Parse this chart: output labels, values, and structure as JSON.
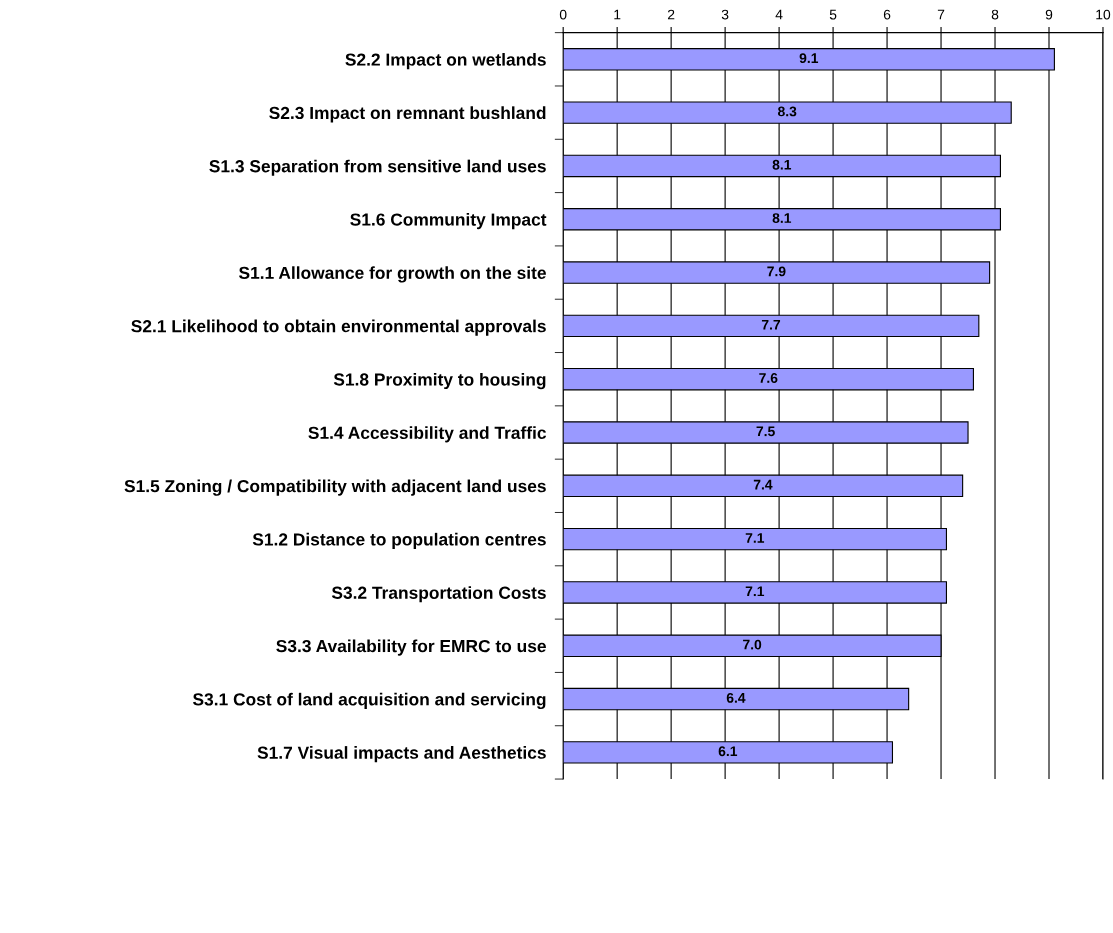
{
  "chart_data": {
    "type": "bar",
    "orientation": "horizontal",
    "categories": [
      "S2.2 Impact on wetlands",
      "S2.3 Impact on remnant bushland",
      "S1.3 Separation from sensitive land uses",
      "S1.6 Community Impact",
      "S1.1 Allowance for growth on the site",
      "S2.1 Likelihood to obtain environmental approvals",
      "S1.8 Proximity to housing",
      "S1.4 Accessibility and Traffic",
      "S1.5 Zoning / Compatibility with adjacent land uses",
      "S1.2 Distance to population centres",
      "S3.2 Transportation Costs",
      "S3.3 Availability for EMRC to use",
      "S3.1 Cost of land acquisition and servicing",
      "S1.7 Visual impacts and Aesthetics"
    ],
    "values": [
      9.1,
      8.3,
      8.1,
      8.1,
      7.9,
      7.7,
      7.6,
      7.5,
      7.4,
      7.1,
      7.1,
      7.0,
      6.4,
      6.1
    ],
    "value_labels": [
      "9.1",
      "8.3",
      "8.1",
      "8.1",
      "7.9",
      "7.7",
      "7.6",
      "7.5",
      "7.4",
      "7.1",
      "7.1",
      "7.0",
      "6.4",
      "6.1"
    ],
    "color": "#9999ff",
    "xlim": [
      0,
      10
    ],
    "xticks": [
      0,
      1,
      2,
      3,
      4,
      5,
      6,
      7,
      8,
      9,
      10
    ],
    "grid": "x",
    "legend": false
  }
}
